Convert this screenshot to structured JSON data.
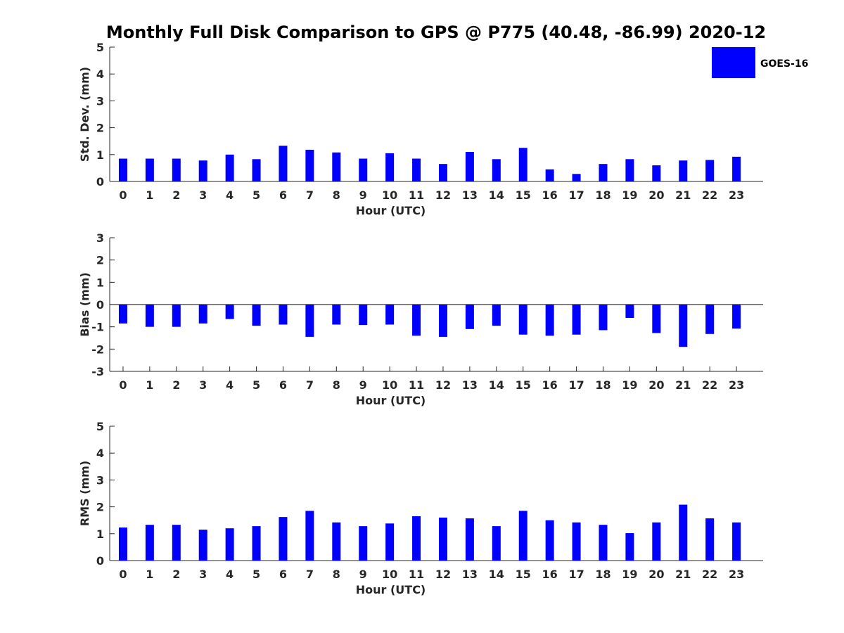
{
  "title": "Monthly Full Disk Comparison to GPS @ P775 (40.48, -86.99) 2020-12",
  "bar_color": "#0000ff",
  "legend": {
    "label": "GOES-16",
    "placement": "top-right"
  },
  "chart_data": [
    {
      "type": "bar",
      "name": "std-dev",
      "categories": [
        "0",
        "1",
        "2",
        "3",
        "4",
        "5",
        "6",
        "7",
        "8",
        "9",
        "10",
        "11",
        "12",
        "13",
        "14",
        "15",
        "16",
        "17",
        "18",
        "19",
        "20",
        "21",
        "22",
        "23"
      ],
      "series": [
        {
          "name": "GOES-16",
          "values": [
            0.85,
            0.85,
            0.85,
            0.78,
            1.0,
            0.83,
            1.33,
            1.18,
            1.08,
            0.85,
            1.05,
            0.85,
            0.65,
            1.1,
            0.83,
            1.25,
            0.45,
            0.28,
            0.65,
            0.83,
            0.6,
            0.78,
            0.8,
            0.92
          ]
        }
      ],
      "xlabel": "Hour (UTC)",
      "ylabel": "Std. Dev. (mm)",
      "ylim": [
        0,
        5
      ],
      "yticks": [
        0,
        1,
        2,
        3,
        4,
        5
      ],
      "grid": false
    },
    {
      "type": "bar",
      "name": "bias",
      "categories": [
        "0",
        "1",
        "2",
        "3",
        "4",
        "5",
        "6",
        "7",
        "8",
        "9",
        "10",
        "11",
        "12",
        "13",
        "14",
        "15",
        "16",
        "17",
        "18",
        "19",
        "20",
        "21",
        "22",
        "23"
      ],
      "series": [
        {
          "name": "GOES-16",
          "values": [
            -0.85,
            -1.0,
            -1.0,
            -0.85,
            -0.65,
            -0.95,
            -0.9,
            -1.45,
            -0.9,
            -0.92,
            -0.9,
            -1.4,
            -1.45,
            -1.1,
            -0.95,
            -1.35,
            -1.4,
            -1.35,
            -1.15,
            -0.6,
            -1.28,
            -1.9,
            -1.32,
            -1.08
          ]
        }
      ],
      "xlabel": "Hour (UTC)",
      "ylabel": "Bias (mm)",
      "ylim": [
        -3,
        3
      ],
      "yticks": [
        -3,
        -2,
        -1,
        0,
        1,
        2,
        3
      ],
      "grid": false
    },
    {
      "type": "bar",
      "name": "rms",
      "categories": [
        "0",
        "1",
        "2",
        "3",
        "4",
        "5",
        "6",
        "7",
        "8",
        "9",
        "10",
        "11",
        "12",
        "13",
        "14",
        "15",
        "16",
        "17",
        "18",
        "19",
        "20",
        "21",
        "22",
        "23"
      ],
      "series": [
        {
          "name": "GOES-16",
          "values": [
            1.23,
            1.33,
            1.33,
            1.15,
            1.2,
            1.28,
            1.62,
            1.85,
            1.42,
            1.28,
            1.38,
            1.65,
            1.6,
            1.57,
            1.28,
            1.85,
            1.5,
            1.42,
            1.33,
            1.02,
            1.42,
            2.08,
            1.57,
            1.42
          ]
        }
      ],
      "xlabel": "Hour (UTC)",
      "ylabel": "RMS (mm)",
      "ylim": [
        0,
        5
      ],
      "yticks": [
        0,
        1,
        2,
        3,
        4,
        5
      ],
      "grid": false
    }
  ]
}
